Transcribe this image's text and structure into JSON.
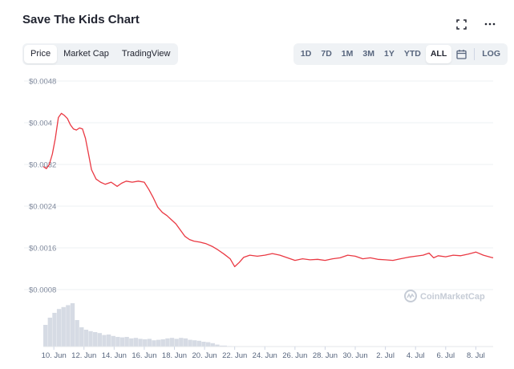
{
  "header": {
    "title": "Save The Kids Chart",
    "icons": [
      "fullscreen-icon",
      "more-icon"
    ]
  },
  "tabs": [
    {
      "label": "Price",
      "active": true
    },
    {
      "label": "Market Cap",
      "active": false
    },
    {
      "label": "TradingView",
      "active": false
    }
  ],
  "ranges": [
    {
      "label": "1D",
      "active": false
    },
    {
      "label": "7D",
      "active": false
    },
    {
      "label": "1M",
      "active": false
    },
    {
      "label": "3M",
      "active": false
    },
    {
      "label": "1Y",
      "active": false
    },
    {
      "label": "YTD",
      "active": false
    },
    {
      "label": "ALL",
      "active": true
    }
  ],
  "log_label": "LOG",
  "watermark": "CoinMarketCap",
  "colors": {
    "line": "#ea3943",
    "volume": "#d6dbe4",
    "grid": "#eef0f3",
    "active_tab_bg": "#ffffff",
    "toolbar_bg": "#eff2f5"
  },
  "chart_data": {
    "type": "line",
    "ylim": [
      0.0008,
      0.0048
    ],
    "y_ticks": [
      "$0.0048",
      "$0.004",
      "$0.0032",
      "$0.0024",
      "$0.0016",
      "$0.0008"
    ],
    "y_tick_values": [
      0.0048,
      0.004,
      0.0032,
      0.0024,
      0.0016,
      0.0008
    ],
    "x_ticks": [
      "10. Jun",
      "12. Jun",
      "14. Jun",
      "16. Jun",
      "18. Jun",
      "20. Jun",
      "22. Jun",
      "24. Jun",
      "26. Jun",
      "28. Jun",
      "30. Jun",
      "2. Jul",
      "4. Jul",
      "6. Jul",
      "8. Jul"
    ],
    "x_range_days": [
      9.3,
      39.15
    ],
    "grid": true,
    "series": [
      {
        "values": [
          [
            9.3,
            0.00316
          ],
          [
            9.5,
            0.00312
          ],
          [
            9.7,
            0.0032
          ],
          [
            9.9,
            0.0034
          ],
          [
            10.1,
            0.0037
          ],
          [
            10.3,
            0.0041
          ],
          [
            10.5,
            0.00418
          ],
          [
            10.7,
            0.00414
          ],
          [
            10.9,
            0.00408
          ],
          [
            11.1,
            0.00396
          ],
          [
            11.3,
            0.00388
          ],
          [
            11.5,
            0.00386
          ],
          [
            11.7,
            0.0039
          ],
          [
            11.9,
            0.00388
          ],
          [
            12.1,
            0.0037
          ],
          [
            12.3,
            0.0034
          ],
          [
            12.5,
            0.0031
          ],
          [
            12.8,
            0.00292
          ],
          [
            13.1,
            0.00286
          ],
          [
            13.4,
            0.00282
          ],
          [
            13.8,
            0.00286
          ],
          [
            14.2,
            0.00278
          ],
          [
            14.5,
            0.00284
          ],
          [
            14.8,
            0.00288
          ],
          [
            15.2,
            0.00286
          ],
          [
            15.6,
            0.00288
          ],
          [
            16.0,
            0.00286
          ],
          [
            16.3,
            0.00272
          ],
          [
            16.6,
            0.00256
          ],
          [
            16.9,
            0.00238
          ],
          [
            17.2,
            0.00228
          ],
          [
            17.5,
            0.00222
          ],
          [
            17.8,
            0.00214
          ],
          [
            18.1,
            0.00206
          ],
          [
            18.4,
            0.00194
          ],
          [
            18.7,
            0.00182
          ],
          [
            19.0,
            0.00176
          ],
          [
            19.3,
            0.00173
          ],
          [
            19.7,
            0.00171
          ],
          [
            20.1,
            0.00168
          ],
          [
            20.5,
            0.00163
          ],
          [
            20.9,
            0.00156
          ],
          [
            21.3,
            0.00148
          ],
          [
            21.7,
            0.00139
          ],
          [
            22.0,
            0.00124
          ],
          [
            22.3,
            0.00132
          ],
          [
            22.6,
            0.00142
          ],
          [
            23.0,
            0.00146
          ],
          [
            23.5,
            0.00144
          ],
          [
            24.0,
            0.00146
          ],
          [
            24.5,
            0.00149
          ],
          [
            25.0,
            0.00146
          ],
          [
            25.5,
            0.00141
          ],
          [
            26.0,
            0.00136
          ],
          [
            26.5,
            0.00139
          ],
          [
            27.0,
            0.00137
          ],
          [
            27.5,
            0.00138
          ],
          [
            28.0,
            0.00136
          ],
          [
            28.5,
            0.00139
          ],
          [
            29.0,
            0.00141
          ],
          [
            29.5,
            0.00146
          ],
          [
            30.0,
            0.00144
          ],
          [
            30.5,
            0.00139
          ],
          [
            31.0,
            0.00141
          ],
          [
            31.5,
            0.00138
          ],
          [
            32.0,
            0.00137
          ],
          [
            32.5,
            0.00136
          ],
          [
            33.0,
            0.00139
          ],
          [
            33.5,
            0.00142
          ],
          [
            34.0,
            0.00144
          ],
          [
            34.5,
            0.00146
          ],
          [
            34.9,
            0.0015
          ],
          [
            35.2,
            0.00141
          ],
          [
            35.5,
            0.00145
          ],
          [
            36.0,
            0.00143
          ],
          [
            36.5,
            0.00146
          ],
          [
            37.0,
            0.00145
          ],
          [
            37.5,
            0.00148
          ],
          [
            38.0,
            0.00152
          ],
          [
            38.5,
            0.00146
          ],
          [
            39.0,
            0.00142
          ],
          [
            39.15,
            0.00141
          ]
        ]
      }
    ],
    "volume": [
      [
        9.3,
        0.45
      ],
      [
        9.6,
        0.6
      ],
      [
        9.9,
        0.7
      ],
      [
        10.2,
        0.78
      ],
      [
        10.5,
        0.82
      ],
      [
        10.8,
        0.86
      ],
      [
        11.1,
        0.9
      ],
      [
        11.4,
        0.55
      ],
      [
        11.7,
        0.4
      ],
      [
        12.0,
        0.35
      ],
      [
        12.3,
        0.32
      ],
      [
        12.6,
        0.3
      ],
      [
        12.9,
        0.28
      ],
      [
        13.2,
        0.24
      ],
      [
        13.5,
        0.25
      ],
      [
        13.8,
        0.22
      ],
      [
        14.1,
        0.2
      ],
      [
        14.4,
        0.19
      ],
      [
        14.7,
        0.2
      ],
      [
        15.0,
        0.17
      ],
      [
        15.3,
        0.18
      ],
      [
        15.6,
        0.16
      ],
      [
        15.9,
        0.15
      ],
      [
        16.2,
        0.16
      ],
      [
        16.5,
        0.13
      ],
      [
        16.8,
        0.14
      ],
      [
        17.1,
        0.15
      ],
      [
        17.4,
        0.17
      ],
      [
        17.7,
        0.18
      ],
      [
        18.0,
        0.16
      ],
      [
        18.3,
        0.18
      ],
      [
        18.6,
        0.17
      ],
      [
        18.9,
        0.14
      ],
      [
        19.2,
        0.13
      ],
      [
        19.5,
        0.12
      ],
      [
        19.8,
        0.1
      ],
      [
        20.1,
        0.09
      ],
      [
        20.4,
        0.07
      ],
      [
        20.7,
        0.04
      ],
      [
        21.0,
        0.02
      ],
      [
        21.5,
        0.01
      ]
    ]
  }
}
